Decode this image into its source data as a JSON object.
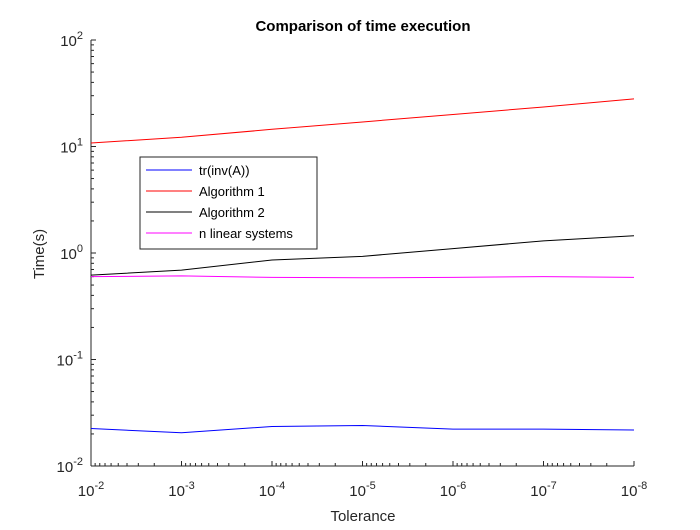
{
  "chart_data": {
    "type": "line",
    "title": "Comparison of time execution",
    "xlabel": "Tolerance",
    "ylabel": "Time(s)",
    "x_scale": "log",
    "y_scale": "log",
    "x_reversed": true,
    "x": [
      0.01,
      0.001,
      0.0001,
      1e-05,
      1e-06,
      1e-07,
      1e-08
    ],
    "xlim": [
      0.01,
      1e-08
    ],
    "ylim": [
      0.01,
      100
    ],
    "x_ticks": [
      {
        "value": 0.01,
        "base": "10",
        "exp": "-2"
      },
      {
        "value": 0.001,
        "base": "10",
        "exp": "-3"
      },
      {
        "value": 0.0001,
        "base": "10",
        "exp": "-4"
      },
      {
        "value": 1e-05,
        "base": "10",
        "exp": "-5"
      },
      {
        "value": 1e-06,
        "base": "10",
        "exp": "-6"
      },
      {
        "value": 1e-07,
        "base": "10",
        "exp": "-7"
      },
      {
        "value": 1e-08,
        "base": "10",
        "exp": "-8"
      }
    ],
    "y_ticks": [
      {
        "value": 0.01,
        "base": "10",
        "exp": "-2"
      },
      {
        "value": 0.1,
        "base": "10",
        "exp": "-1"
      },
      {
        "value": 1,
        "base": "10",
        "exp": "0"
      },
      {
        "value": 10,
        "base": "10",
        "exp": "1"
      },
      {
        "value": 100,
        "base": "10",
        "exp": "2"
      }
    ],
    "grid": false,
    "legend_position": "upper-left",
    "series": [
      {
        "name": "tr(inv(A))",
        "color": "#0000ff",
        "values": [
          0.0225,
          0.0205,
          0.0235,
          0.024,
          0.0222,
          0.0222,
          0.0218
        ]
      },
      {
        "name": "Algorithm 1",
        "color": "#ff0000",
        "values": [
          10.8,
          12.2,
          14.5,
          17.0,
          20.0,
          23.5,
          28.0
        ]
      },
      {
        "name": "Algorithm 2",
        "color": "#000000",
        "values": [
          0.62,
          0.69,
          0.86,
          0.93,
          1.1,
          1.3,
          1.45
        ]
      },
      {
        "name": "n linear systems",
        "color": "#ff00ff",
        "values": [
          0.6,
          0.61,
          0.59,
          0.585,
          0.59,
          0.6,
          0.59
        ]
      }
    ]
  }
}
